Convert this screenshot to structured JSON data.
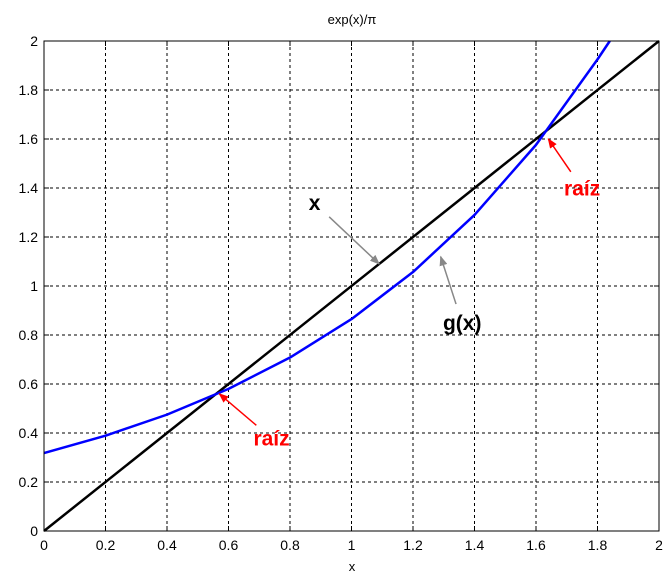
{
  "chart_data": {
    "type": "line",
    "title": "exp(x)/π",
    "xlabel": "x",
    "ylabel": "",
    "xlim": [
      0,
      2
    ],
    "ylim": [
      0,
      2
    ],
    "x_ticks": [
      "0",
      "0.2",
      "0.4",
      "0.6",
      "0.8",
      "1",
      "1.2",
      "1.4",
      "1.6",
      "1.8",
      "2"
    ],
    "y_ticks": [
      "0",
      "0.2",
      "0.4",
      "0.6",
      "0.8",
      "1",
      "1.2",
      "1.4",
      "1.6",
      "1.8",
      "2"
    ],
    "grid": true,
    "series": [
      {
        "color": "#000000",
        "x": [
          0,
          2
        ],
        "y": [
          0,
          2
        ]
      },
      {
        "color": "#0000ff",
        "x": [
          0,
          0.2,
          0.4,
          0.6,
          0.8,
          1.0,
          1.2,
          1.4,
          1.6,
          1.8,
          1.84
        ],
        "y": [
          0.318,
          0.389,
          0.475,
          0.58,
          0.708,
          0.865,
          1.057,
          1.29,
          1.576,
          1.925,
          2.0
        ]
      }
    ],
    "annotations": [
      {
        "text": "x",
        "color": "#000000",
        "target": [
          1.09,
          1.09
        ],
        "label_at": [
          0.88,
          1.31
        ]
      },
      {
        "text": "g(x)",
        "color": "#000000",
        "target": [
          1.29,
          1.12
        ],
        "label_at": [
          1.36,
          0.82
        ]
      },
      {
        "text": "raíz",
        "color": "#ff0000",
        "target": [
          0.57,
          0.56
        ],
        "label_at": [
          0.74,
          0.35
        ]
      },
      {
        "text": "raíz",
        "color": "#ff0000",
        "target": [
          1.64,
          1.6
        ],
        "label_at": [
          1.75,
          1.37
        ]
      }
    ]
  }
}
